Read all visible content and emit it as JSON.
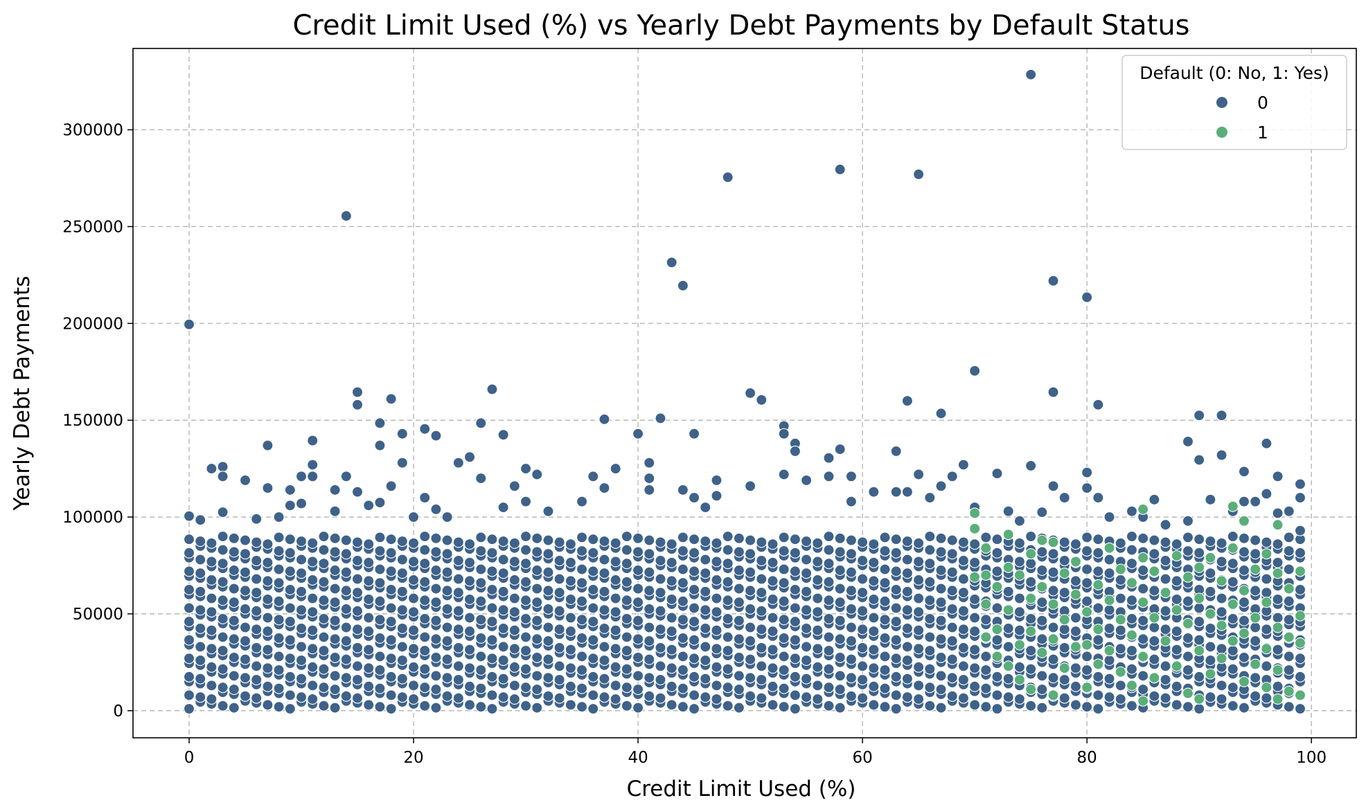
{
  "chart_data": {
    "type": "scatter",
    "title": "Credit Limit Used (%) vs Yearly Debt Payments by Default Status",
    "xlabel": "Credit Limit Used (%)",
    "ylabel": "Yearly Debt Payments",
    "xlim": [
      -5,
      104
    ],
    "ylim": [
      -14000,
      342000
    ],
    "xticks": [
      0,
      20,
      40,
      60,
      80,
      100
    ],
    "yticks": [
      0,
      50000,
      100000,
      150000,
      200000,
      250000,
      300000
    ],
    "xtick_labels": [
      "0",
      "20",
      "40",
      "60",
      "80",
      "100"
    ],
    "ytick_labels": [
      "0",
      "50000",
      "100000",
      "150000",
      "200000",
      "250000",
      "300000"
    ],
    "grid": true,
    "legend": {
      "title": "Default (0: No, 1: Yes)",
      "position": "top-right",
      "entries": [
        {
          "label": "0",
          "color": "#3e6289"
        },
        {
          "label": "1",
          "color": "#5aae79"
        }
      ]
    },
    "series": [
      {
        "name": "0",
        "color": "#3e6289",
        "cluster": {
          "x_range": [
            0,
            99
          ],
          "x_step": 1,
          "y_range": [
            3000,
            88000
          ],
          "y_step": 5000
        },
        "points": [
          [
            0,
            199500
          ],
          [
            0,
            100500
          ],
          [
            1,
            98500
          ],
          [
            2,
            125000
          ],
          [
            3,
            126000
          ],
          [
            3,
            121000
          ],
          [
            3,
            102500
          ],
          [
            5,
            119000
          ],
          [
            6,
            99000
          ],
          [
            7,
            137000
          ],
          [
            7,
            115000
          ],
          [
            8,
            100000
          ],
          [
            9,
            114000
          ],
          [
            9,
            106000
          ],
          [
            10,
            121000
          ],
          [
            10,
            107000
          ],
          [
            11,
            139500
          ],
          [
            11,
            127000
          ],
          [
            11,
            121000
          ],
          [
            13,
            114000
          ],
          [
            13,
            103000
          ],
          [
            14,
            255500
          ],
          [
            14,
            121000
          ],
          [
            15,
            164500
          ],
          [
            15,
            158000
          ],
          [
            15,
            113000
          ],
          [
            16,
            106000
          ],
          [
            17,
            148500
          ],
          [
            17,
            137000
          ],
          [
            17,
            107500
          ],
          [
            18,
            161000
          ],
          [
            18,
            116000
          ],
          [
            19,
            143000
          ],
          [
            19,
            128000
          ],
          [
            20,
            100000
          ],
          [
            21,
            145500
          ],
          [
            21,
            110000
          ],
          [
            22,
            142000
          ],
          [
            22,
            104000
          ],
          [
            23,
            100000
          ],
          [
            24,
            128000
          ],
          [
            25,
            131000
          ],
          [
            26,
            148500
          ],
          [
            26,
            120000
          ],
          [
            27,
            166000
          ],
          [
            28,
            142500
          ],
          [
            28,
            105000
          ],
          [
            29,
            116000
          ],
          [
            30,
            125000
          ],
          [
            30,
            108000
          ],
          [
            31,
            122000
          ],
          [
            32,
            103000
          ],
          [
            35,
            108000
          ],
          [
            36,
            121000
          ],
          [
            37,
            150500
          ],
          [
            37,
            115000
          ],
          [
            38,
            125000
          ],
          [
            40,
            143000
          ],
          [
            41,
            128000
          ],
          [
            41,
            120000
          ],
          [
            41,
            114000
          ],
          [
            42,
            151000
          ],
          [
            43,
            231500
          ],
          [
            44,
            219500
          ],
          [
            44,
            114000
          ],
          [
            45,
            143000
          ],
          [
            45,
            110000
          ],
          [
            46,
            105000
          ],
          [
            47,
            119000
          ],
          [
            47,
            111000
          ],
          [
            48,
            275500
          ],
          [
            50,
            164000
          ],
          [
            50,
            116000
          ],
          [
            51,
            160500
          ],
          [
            53,
            147000
          ],
          [
            53,
            143000
          ],
          [
            53,
            122000
          ],
          [
            54,
            138000
          ],
          [
            54,
            134000
          ],
          [
            55,
            119000
          ],
          [
            57,
            130500
          ],
          [
            57,
            121000
          ],
          [
            58,
            279500
          ],
          [
            58,
            135000
          ],
          [
            59,
            121000
          ],
          [
            59,
            108000
          ],
          [
            61,
            113000
          ],
          [
            63,
            134000
          ],
          [
            63,
            113000
          ],
          [
            64,
            160000
          ],
          [
            64,
            113000
          ],
          [
            65,
            277000
          ],
          [
            65,
            122000
          ],
          [
            66,
            110000
          ],
          [
            67,
            153500
          ],
          [
            67,
            116000
          ],
          [
            68,
            121000
          ],
          [
            69,
            127000
          ],
          [
            70,
            175500
          ],
          [
            70,
            105000
          ],
          [
            72,
            122500
          ],
          [
            73,
            103000
          ],
          [
            74,
            98000
          ],
          [
            75,
            328500
          ],
          [
            75,
            126500
          ],
          [
            76,
            102500
          ],
          [
            77,
            222000
          ],
          [
            77,
            164500
          ],
          [
            77,
            116000
          ],
          [
            78,
            110000
          ],
          [
            80,
            213500
          ],
          [
            80,
            123000
          ],
          [
            80,
            115000
          ],
          [
            81,
            158000
          ],
          [
            81,
            110000
          ],
          [
            82,
            100000
          ],
          [
            84,
            103000
          ],
          [
            85,
            100000
          ],
          [
            86,
            109000
          ],
          [
            87,
            96000
          ],
          [
            89,
            139000
          ],
          [
            89,
            98000
          ],
          [
            90,
            152500
          ],
          [
            90,
            129500
          ],
          [
            91,
            109000
          ],
          [
            92,
            152500
          ],
          [
            92,
            132000
          ],
          [
            93,
            103000
          ],
          [
            94,
            123500
          ],
          [
            94,
            108000
          ],
          [
            95,
            108000
          ],
          [
            96,
            138000
          ],
          [
            96,
            112000
          ],
          [
            97,
            121000
          ],
          [
            97,
            102000
          ],
          [
            98,
            103000
          ],
          [
            99,
            117000
          ],
          [
            99,
            110000
          ],
          [
            99,
            93000
          ]
        ]
      },
      {
        "name": "1",
        "color": "#5aae79",
        "points": [
          [
            70,
            102000
          ],
          [
            70,
            94000
          ],
          [
            70,
            69000
          ],
          [
            71,
            84000
          ],
          [
            71,
            70000
          ],
          [
            71,
            55000
          ],
          [
            71,
            38000
          ],
          [
            72,
            64000
          ],
          [
            72,
            42000
          ],
          [
            72,
            28000
          ],
          [
            73,
            91000
          ],
          [
            73,
            74000
          ],
          [
            73,
            52000
          ],
          [
            73,
            23000
          ],
          [
            74,
            70000
          ],
          [
            74,
            34000
          ],
          [
            74,
            16000
          ],
          [
            75,
            81000
          ],
          [
            75,
            58000
          ],
          [
            75,
            41000
          ],
          [
            75,
            11000
          ],
          [
            76,
            88000
          ],
          [
            76,
            64000
          ],
          [
            76,
            30000
          ],
          [
            77,
            87000
          ],
          [
            77,
            55000
          ],
          [
            77,
            37000
          ],
          [
            77,
            8000
          ],
          [
            78,
            71000
          ],
          [
            78,
            47000
          ],
          [
            78,
            22000
          ],
          [
            79,
            77000
          ],
          [
            79,
            60000
          ],
          [
            79,
            33000
          ],
          [
            80,
            51000
          ],
          [
            80,
            34000
          ],
          [
            80,
            12000
          ],
          [
            81,
            65000
          ],
          [
            81,
            42000
          ],
          [
            81,
            24000
          ],
          [
            82,
            84000
          ],
          [
            82,
            57000
          ],
          [
            82,
            31000
          ],
          [
            83,
            73000
          ],
          [
            83,
            47000
          ],
          [
            83,
            20000
          ],
          [
            84,
            66000
          ],
          [
            84,
            39000
          ],
          [
            84,
            13000
          ],
          [
            85,
            104000
          ],
          [
            85,
            79000
          ],
          [
            85,
            56000
          ],
          [
            85,
            28000
          ],
          [
            85,
            5000
          ],
          [
            86,
            72000
          ],
          [
            86,
            48000
          ],
          [
            86,
            17000
          ],
          [
            87,
            61000
          ],
          [
            87,
            36000
          ],
          [
            88,
            80000
          ],
          [
            88,
            52000
          ],
          [
            88,
            23000
          ],
          [
            89,
            69000
          ],
          [
            89,
            45000
          ],
          [
            89,
            9000
          ],
          [
            90,
            74000
          ],
          [
            90,
            58000
          ],
          [
            90,
            31000
          ],
          [
            90,
            6000
          ],
          [
            91,
            79000
          ],
          [
            91,
            50000
          ],
          [
            91,
            19000
          ],
          [
            92,
            67000
          ],
          [
            92,
            44000
          ],
          [
            92,
            27000
          ],
          [
            93,
            105500
          ],
          [
            93,
            84000
          ],
          [
            93,
            55000
          ],
          [
            93,
            36000
          ],
          [
            94,
            98000
          ],
          [
            94,
            62000
          ],
          [
            94,
            40000
          ],
          [
            94,
            15000
          ],
          [
            95,
            73000
          ],
          [
            95,
            48000
          ],
          [
            95,
            24000
          ],
          [
            96,
            81000
          ],
          [
            96,
            56000
          ],
          [
            96,
            32000
          ],
          [
            96,
            12000
          ],
          [
            97,
            96000
          ],
          [
            97,
            71000
          ],
          [
            97,
            43000
          ],
          [
            97,
            21000
          ],
          [
            97,
            6000
          ],
          [
            98,
            63000
          ],
          [
            98,
            38000
          ],
          [
            98,
            10000
          ],
          [
            99,
            72000
          ],
          [
            99,
            49000
          ],
          [
            99,
            35000
          ],
          [
            99,
            8000
          ]
        ]
      }
    ]
  }
}
